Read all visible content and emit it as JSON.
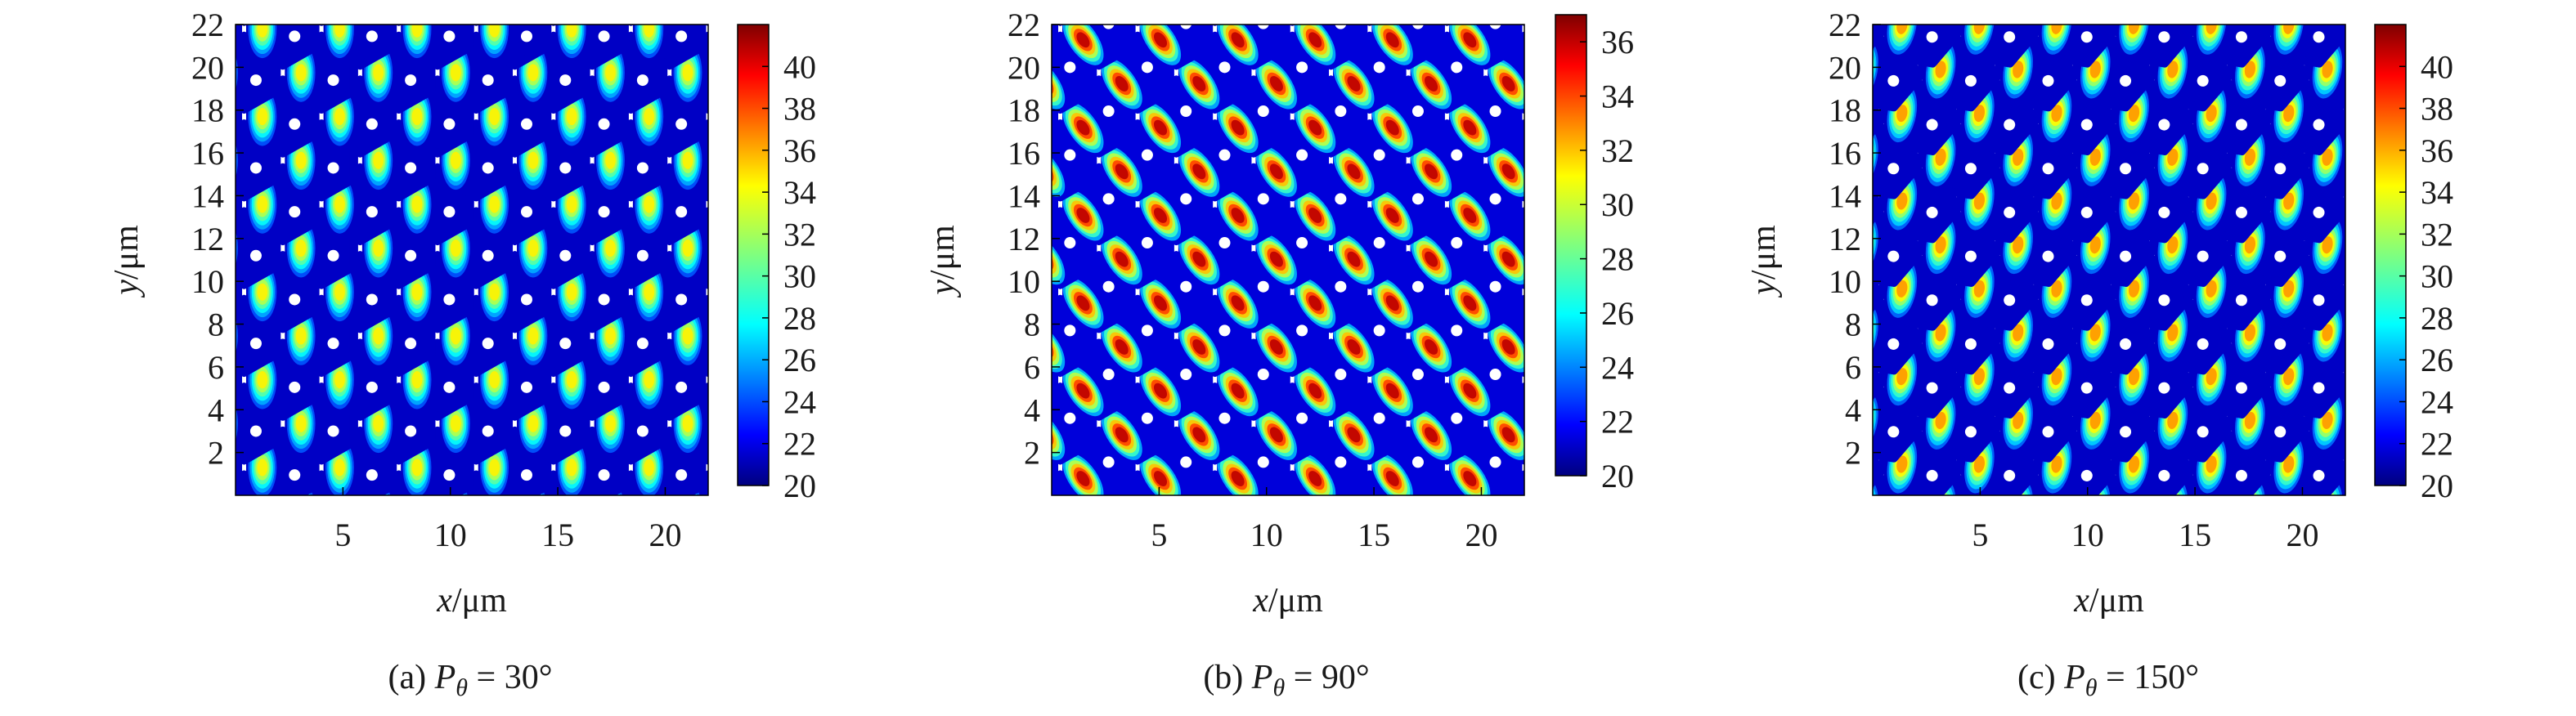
{
  "figure": {
    "panels": [
      {
        "caption_prefix": "(a)",
        "caption_symbol": "P",
        "caption_subscript": "θ",
        "caption_value": "= 30°"
      },
      {
        "caption_prefix": "(b)",
        "caption_symbol": "P",
        "caption_subscript": "θ",
        "caption_value": "= 90°"
      },
      {
        "caption_prefix": "(c)",
        "caption_symbol": "P",
        "caption_subscript": "θ",
        "caption_value": "= 150°"
      }
    ]
  },
  "chart_data": [
    {
      "type": "heatmap",
      "title": "(a) Pθ = 30°",
      "xlabel_var": "x",
      "xlabel_unit": "/μm",
      "ylabel_var": "y",
      "ylabel_unit": "/μm",
      "xlim": [
        0,
        22
      ],
      "ylim": [
        0,
        22
      ],
      "xticks": [
        5,
        10,
        15,
        20
      ],
      "yticks": [
        2,
        4,
        6,
        8,
        10,
        12,
        14,
        16,
        18,
        20,
        22
      ],
      "colorbar": {
        "min": 20,
        "max": 42,
        "ticks": [
          20,
          22,
          24,
          26,
          28,
          30,
          32,
          34,
          36,
          38,
          40
        ]
      },
      "pattern": "hexagonal array of cells, each with a small white hole; hot spot on the left side of each cell",
      "lattice": {
        "x_spacing": 3.6,
        "row_spacing": 4.1,
        "row_offset": 1.8,
        "first_x": 2.2,
        "first_row_y": 1.3,
        "cell_radius": 1.75
      },
      "hotspot": {
        "peak_value": 34,
        "angle_deg": 180,
        "distance": 0.95
      },
      "hole_offset": [
        0.55,
        -0.35
      ]
    },
    {
      "type": "heatmap",
      "title": "(b) Pθ = 90°",
      "xlabel_var": "x",
      "xlabel_unit": "/μm",
      "ylabel_var": "y",
      "ylabel_unit": "/μm",
      "xlim": [
        0,
        22
      ],
      "ylim": [
        0,
        22
      ],
      "xticks": [
        5,
        10,
        15,
        20
      ],
      "yticks": [
        2,
        4,
        6,
        8,
        10,
        12,
        14,
        16,
        18,
        20,
        22
      ],
      "colorbar": {
        "min": 20,
        "max": 37,
        "ticks": [
          20,
          22,
          24,
          26,
          28,
          30,
          32,
          34,
          36
        ]
      },
      "pattern": "hexagonal array of cells, each with a small white hole; crescent-shaped hot spot on the lower-left of each cell",
      "lattice": {
        "x_spacing": 3.6,
        "row_spacing": 4.1,
        "row_offset": 1.8,
        "first_x": 2.2,
        "first_row_y": 1.3,
        "cell_radius": 1.75
      },
      "hotspot": {
        "peak_value": 36,
        "angle_deg": 215,
        "distance": 0.9
      },
      "hole_offset": [
        0.45,
        0.25
      ]
    },
    {
      "type": "heatmap",
      "title": "(c) Pθ = 150°",
      "xlabel_var": "x",
      "xlabel_unit": "/μm",
      "ylabel_var": "y",
      "ylabel_unit": "/μm",
      "xlim": [
        0,
        22
      ],
      "ylim": [
        0,
        22
      ],
      "xticks": [
        5,
        10,
        15,
        20
      ],
      "yticks": [
        2,
        4,
        6,
        8,
        10,
        12,
        14,
        16,
        18,
        20,
        22
      ],
      "colorbar": {
        "min": 20,
        "max": 42,
        "ticks": [
          20,
          22,
          24,
          26,
          28,
          30,
          32,
          34,
          36,
          38,
          40
        ]
      },
      "pattern": "hexagonal array of tilted cells, each with a small white hole; hot spot on the upper-left of each cell",
      "lattice": {
        "x_spacing": 3.6,
        "row_spacing": 4.1,
        "row_offset": 1.8,
        "first_x": 2.2,
        "first_row_y": 1.3,
        "cell_radius": 1.75
      },
      "hotspot": {
        "peak_value": 36,
        "angle_deg": 150,
        "distance": 0.85
      },
      "hole_offset": [
        0.4,
        -0.55
      ]
    }
  ]
}
